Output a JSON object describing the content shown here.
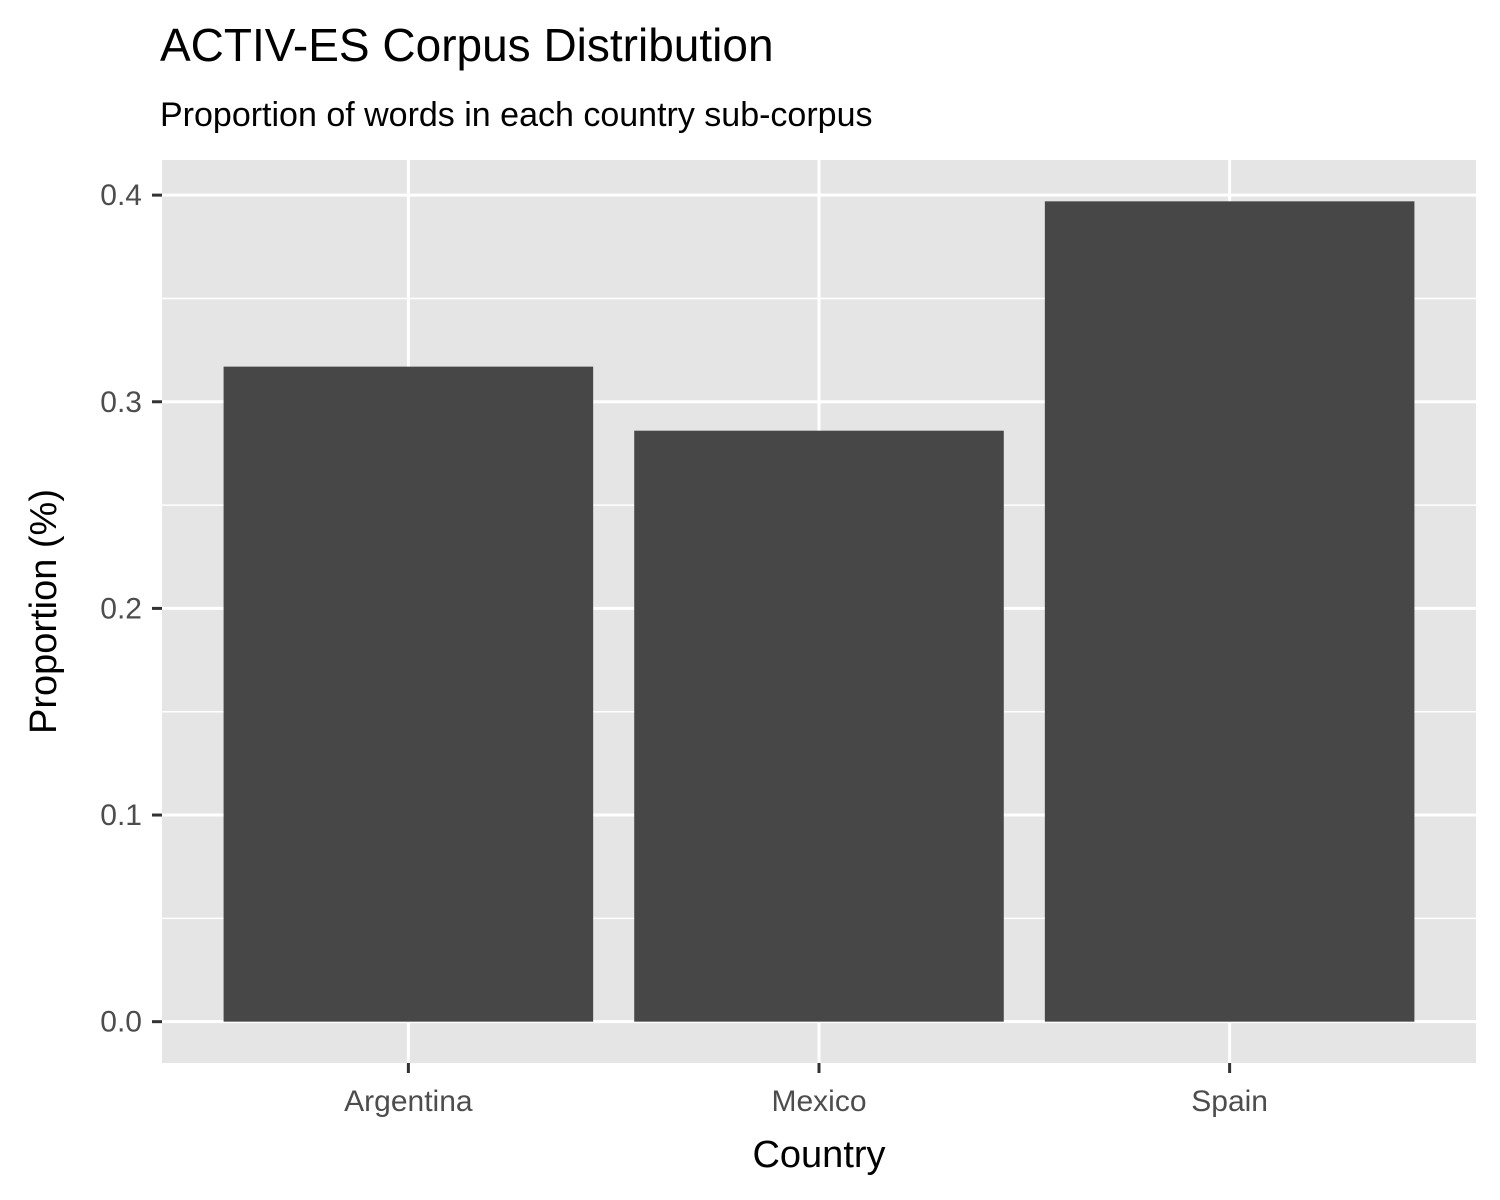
{
  "chart_data": {
    "type": "bar",
    "title": "ACTIV-ES Corpus Distribution",
    "subtitle": "Proportion of words in each country sub-corpus",
    "xlabel": "Country",
    "ylabel": "Proportion (%)",
    "categories": [
      "Argentina",
      "Mexico",
      "Spain"
    ],
    "values": [
      0.317,
      0.286,
      0.397
    ],
    "ylim": [
      -0.02,
      0.417
    ],
    "yticks": [
      0.0,
      0.1,
      0.2,
      0.3,
      0.4
    ],
    "ytick_labels": [
      "0.0",
      "0.1",
      "0.2",
      "0.3",
      "0.4"
    ],
    "grid": true,
    "legend": "none",
    "colors": {
      "bar": "#474747",
      "panel": "#e5e5e5",
      "grid": "#ffffff",
      "tick_text": "#4d4d4d",
      "tick_mark": "#333333"
    }
  }
}
